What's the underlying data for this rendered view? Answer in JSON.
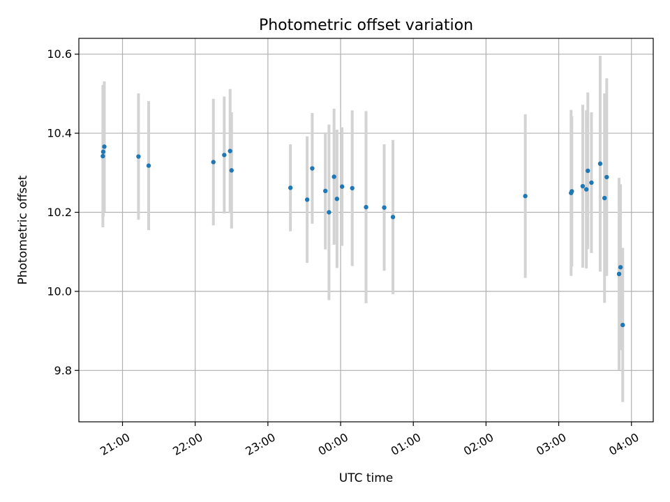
{
  "chart_data": {
    "type": "scatter",
    "title": "Photometric offset variation",
    "xlabel": "UTC time",
    "ylabel": "Photometric offset",
    "x_unit": "hours",
    "xlim": [
      20.4,
      28.3
    ],
    "ylim": [
      9.67,
      10.64
    ],
    "x_ticks": [
      {
        "value": 21,
        "label": "21:00"
      },
      {
        "value": 22,
        "label": "22:00"
      },
      {
        "value": 23,
        "label": "23:00"
      },
      {
        "value": 24,
        "label": "00:00"
      },
      {
        "value": 25,
        "label": "01:00"
      },
      {
        "value": 26,
        "label": "02:00"
      },
      {
        "value": 27,
        "label": "03:00"
      },
      {
        "value": 28,
        "label": "04:00"
      }
    ],
    "y_ticks": [
      {
        "value": 9.8,
        "label": "9.8"
      },
      {
        "value": 10.0,
        "label": "10.0"
      },
      {
        "value": 10.2,
        "label": "10.2"
      },
      {
        "value": 10.4,
        "label": "10.4"
      },
      {
        "value": 10.6,
        "label": "10.6"
      }
    ],
    "grid": true,
    "colors": {
      "points": "#1f77b4",
      "errorbars": "#d3d3d3"
    },
    "points": [
      {
        "x": 20.73,
        "y": 10.342,
        "err": 0.18
      },
      {
        "x": 20.735,
        "y": 10.353,
        "err": 0.165
      },
      {
        "x": 20.75,
        "y": 10.366,
        "err": 0.165
      },
      {
        "x": 21.22,
        "y": 10.341,
        "err": 0.16
      },
      {
        "x": 21.36,
        "y": 10.318,
        "err": 0.163
      },
      {
        "x": 22.25,
        "y": 10.327,
        "err": 0.16
      },
      {
        "x": 22.4,
        "y": 10.345,
        "err": 0.148
      },
      {
        "x": 22.48,
        "y": 10.355,
        "err": 0.157
      },
      {
        "x": 22.5,
        "y": 10.306,
        "err": 0.147
      },
      {
        "x": 23.31,
        "y": 10.262,
        "err": 0.11
      },
      {
        "x": 23.54,
        "y": 10.232,
        "err": 0.16
      },
      {
        "x": 23.61,
        "y": 10.311,
        "err": 0.14
      },
      {
        "x": 23.79,
        "y": 10.254,
        "err": 0.148
      },
      {
        "x": 23.84,
        "y": 10.2,
        "err": 0.222
      },
      {
        "x": 23.91,
        "y": 10.29,
        "err": 0.172
      },
      {
        "x": 23.95,
        "y": 10.234,
        "err": 0.175
      },
      {
        "x": 24.02,
        "y": 10.265,
        "err": 0.15
      },
      {
        "x": 24.16,
        "y": 10.261,
        "err": 0.197
      },
      {
        "x": 24.35,
        "y": 10.213,
        "err": 0.243
      },
      {
        "x": 24.6,
        "y": 10.212,
        "err": 0.16
      },
      {
        "x": 24.72,
        "y": 10.188,
        "err": 0.195
      },
      {
        "x": 26.54,
        "y": 10.241,
        "err": 0.207
      },
      {
        "x": 27.17,
        "y": 10.249,
        "err": 0.21
      },
      {
        "x": 27.18,
        "y": 10.253,
        "err": 0.19
      },
      {
        "x": 27.33,
        "y": 10.266,
        "err": 0.206
      },
      {
        "x": 27.38,
        "y": 10.258,
        "err": 0.2
      },
      {
        "x": 27.4,
        "y": 10.305,
        "err": 0.198
      },
      {
        "x": 27.45,
        "y": 10.275,
        "err": 0.178
      },
      {
        "x": 27.57,
        "y": 10.323,
        "err": 0.273
      },
      {
        "x": 27.63,
        "y": 10.236,
        "err": 0.265
      },
      {
        "x": 27.66,
        "y": 10.289,
        "err": 0.25
      },
      {
        "x": 27.83,
        "y": 10.044,
        "err": 0.243
      },
      {
        "x": 27.85,
        "y": 10.061,
        "err": 0.21
      },
      {
        "x": 27.88,
        "y": 9.915,
        "err": 0.195
      }
    ]
  }
}
